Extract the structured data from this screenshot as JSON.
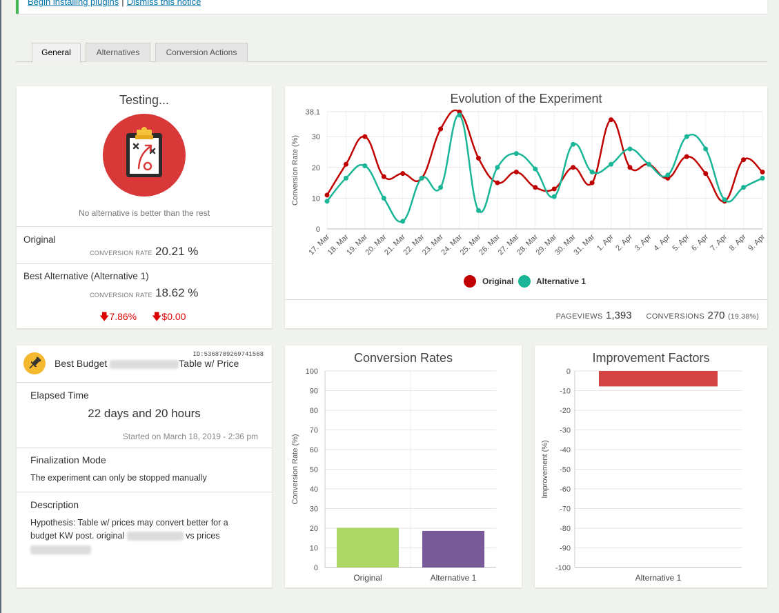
{
  "notice": {
    "link1": "Begin installing plugins",
    "separator": "|",
    "link2": "Dismiss this notice"
  },
  "tabs": [
    {
      "label": "General",
      "active": true
    },
    {
      "label": "Alternatives",
      "active": false
    },
    {
      "label": "Conversion Actions",
      "active": false
    }
  ],
  "summary": {
    "title": "Testing...",
    "icon": "clipboard-strategy-icon",
    "message": "No alternative is better than the rest",
    "original": {
      "label": "Original",
      "rate_label": "CONVERSION RATE",
      "rate": "20.21 %"
    },
    "best": {
      "label": "Best Alternative (Alternative 1)",
      "rate_label": "CONVERSION RATE",
      "rate": "18.62 %",
      "delta_percent": "7.86%",
      "delta_money": "$0.00"
    }
  },
  "evolution": {
    "title": "Evolution of the Experiment",
    "pageviews_label": "PAGEVIEWS",
    "pageviews": "1,393",
    "conversions_label": "CONVERSIONS",
    "conversions": "270",
    "conversions_pct": "(19.38%)"
  },
  "details": {
    "icon": "pushpin-icon",
    "id_label": "ID:5368789269741568",
    "name_prefix": "Best Budget",
    "name_suffix": "Table w/ Price",
    "elapsed_title": "Elapsed Time",
    "elapsed": "22 days and 20 hours",
    "started": "Started on March 18, 2019 - 2:36 pm",
    "final_title": "Finalization Mode",
    "final_text": "The experiment can only be stopped manually",
    "desc_title": "Description",
    "desc_line1": "Hypothesis: Table w/ prices may convert better for a",
    "desc_line2a": "budget KW post. original",
    "desc_line2b": "vs prices"
  },
  "colors": {
    "original": "#c00000",
    "alternative": "#18b596",
    "bar_original": "#acd767",
    "bar_alternative": "#775a97",
    "improvement": "#d34545",
    "notice_border": "#46b450"
  },
  "chart_data": [
    {
      "type": "line",
      "title": "Evolution of the Experiment",
      "ylabel": "Conversion Rate (%)",
      "x": [
        "17. Mar",
        "18. Mar",
        "19. Mar",
        "20. Mar",
        "21. Mar",
        "22. Mar",
        "23. Mar",
        "24. Mar",
        "25. Mar",
        "26. Mar",
        "27. Mar",
        "28. Mar",
        "29. Mar",
        "30. Mar",
        "31. Mar",
        "1. Apr",
        "2. Apr",
        "3. Apr",
        "4. Apr",
        "5. Apr",
        "6. Apr",
        "7. Apr",
        "8. Apr",
        "9. Apr"
      ],
      "yticks": [
        "0",
        "10",
        "20",
        "30",
        "38.1"
      ],
      "ylim": [
        0,
        38.1
      ],
      "series": [
        {
          "name": "Original",
          "values": [
            11,
            21,
            30,
            17,
            18,
            16.5,
            32.5,
            38,
            23,
            15,
            18.5,
            13.5,
            13,
            20,
            15,
            35.5,
            20,
            21,
            16.5,
            23.5,
            18,
            9,
            22.5,
            18.5
          ]
        },
        {
          "name": "Alternative 1",
          "values": [
            9,
            16.5,
            20.5,
            10,
            2.5,
            16.5,
            13.5,
            37,
            6,
            20,
            24.5,
            19.5,
            10.5,
            27.5,
            18.5,
            21,
            26,
            21,
            17.5,
            30,
            26,
            9.5,
            13.5,
            16.5
          ]
        }
      ],
      "legend": "bottom",
      "grid": true
    },
    {
      "type": "bar",
      "title": "Conversion Rates",
      "ylabel": "Conversion Rate (%)",
      "categories": [
        "Original",
        "Alternative 1"
      ],
      "values": [
        20.21,
        18.62
      ],
      "ylim": [
        0,
        100
      ],
      "yticks": [
        "0",
        "10",
        "20",
        "30",
        "40",
        "50",
        "60",
        "70",
        "80",
        "90",
        "100"
      ]
    },
    {
      "type": "bar",
      "title": "Improvement Factors",
      "ylabel": "Improvement (%)",
      "categories": [
        "Alternative 1"
      ],
      "values": [
        -7.86
      ],
      "ylim": [
        -100,
        0
      ],
      "yticks": [
        "0",
        "-10",
        "-20",
        "-30",
        "-40",
        "-50",
        "-60",
        "-70",
        "-80",
        "-90",
        "-100"
      ]
    }
  ]
}
